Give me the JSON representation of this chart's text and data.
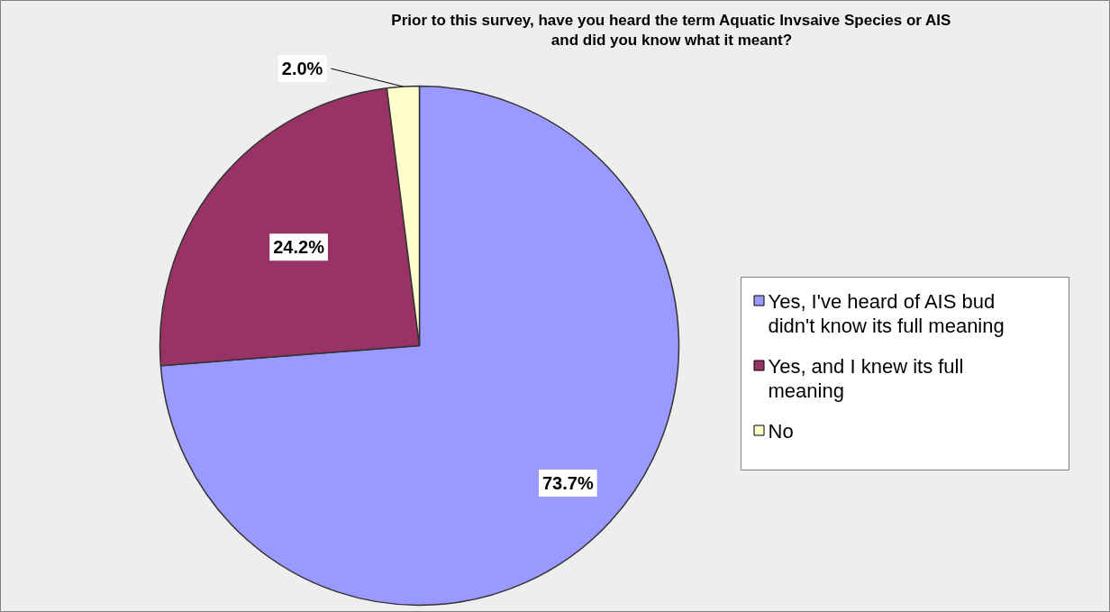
{
  "chart_data": {
    "type": "pie",
    "title": "Prior to this survey, have you heard the term Aquatic Invsaive Species or AIS and did you know what it meant?",
    "categories": [
      "Yes, I've heard of AIS bud didn't know its full meaning",
      "Yes, and I knew its full meaning",
      "No"
    ],
    "values": [
      73.7,
      24.2,
      2.0
    ],
    "colors": [
      "#9999ff",
      "#993366",
      "#ffffcc"
    ],
    "value_labels": [
      "73.7%",
      "24.2%",
      "2.0%"
    ],
    "legend": "right"
  }
}
